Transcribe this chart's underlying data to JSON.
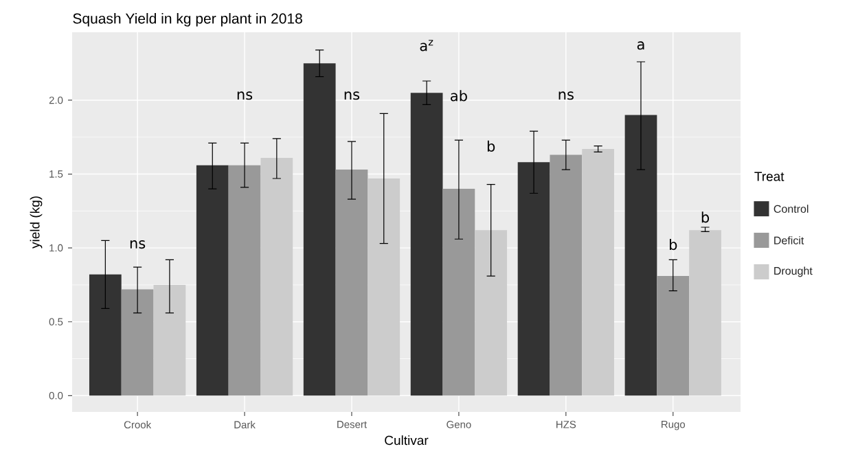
{
  "chart_data": {
    "type": "bar",
    "title": "Squash Yield in kg per plant in 2018",
    "xlabel": "Cultivar",
    "ylabel": "yield (kg)",
    "legend_title": "Treat",
    "categories": [
      "Crook",
      "Dark",
      "Desert",
      "Geno",
      "HZS",
      "Rugo"
    ],
    "series": [
      {
        "name": "Control",
        "color": "#333333",
        "values": [
          0.82,
          1.56,
          2.25,
          2.05,
          1.58,
          1.9
        ],
        "errors": [
          [
            0.59,
            1.05
          ],
          [
            1.4,
            1.71
          ],
          [
            2.16,
            2.34
          ],
          [
            1.97,
            2.13
          ],
          [
            1.37,
            1.79
          ],
          [
            1.53,
            2.26
          ]
        ]
      },
      {
        "name": "Deficit",
        "color": "#999999",
        "values": [
          0.72,
          1.56,
          1.53,
          1.4,
          1.63,
          0.81
        ],
        "errors": [
          [
            0.56,
            0.87
          ],
          [
            1.41,
            1.71
          ],
          [
            1.33,
            1.72
          ],
          [
            1.06,
            1.73
          ],
          [
            1.53,
            1.73
          ],
          [
            0.71,
            0.92
          ]
        ]
      },
      {
        "name": "Drought",
        "color": "#cccccc",
        "values": [
          0.75,
          1.61,
          1.47,
          1.12,
          1.67,
          1.12
        ],
        "errors": [
          [
            0.56,
            0.92
          ],
          [
            1.47,
            1.74
          ],
          [
            1.03,
            1.91
          ],
          [
            0.81,
            1.43
          ],
          [
            1.65,
            1.69
          ],
          [
            1.11,
            1.14
          ]
        ]
      }
    ],
    "ylim": [
      -0.11,
      2.46
    ],
    "yticks": [
      {
        "value": 0,
        "label": "0.0"
      },
      {
        "value": 0.5,
        "label": "0.5"
      },
      {
        "value": 1,
        "label": "1.0"
      },
      {
        "value": 1.5,
        "label": "1.5"
      },
      {
        "value": 2,
        "label": "2.0"
      }
    ],
    "annotations": [
      "ns",
      "ns",
      "ns",
      "a$^{z}$",
      "ab",
      "b",
      "ns",
      "a",
      "b",
      "b"
    ],
    "grid": true,
    "legend": "right"
  }
}
